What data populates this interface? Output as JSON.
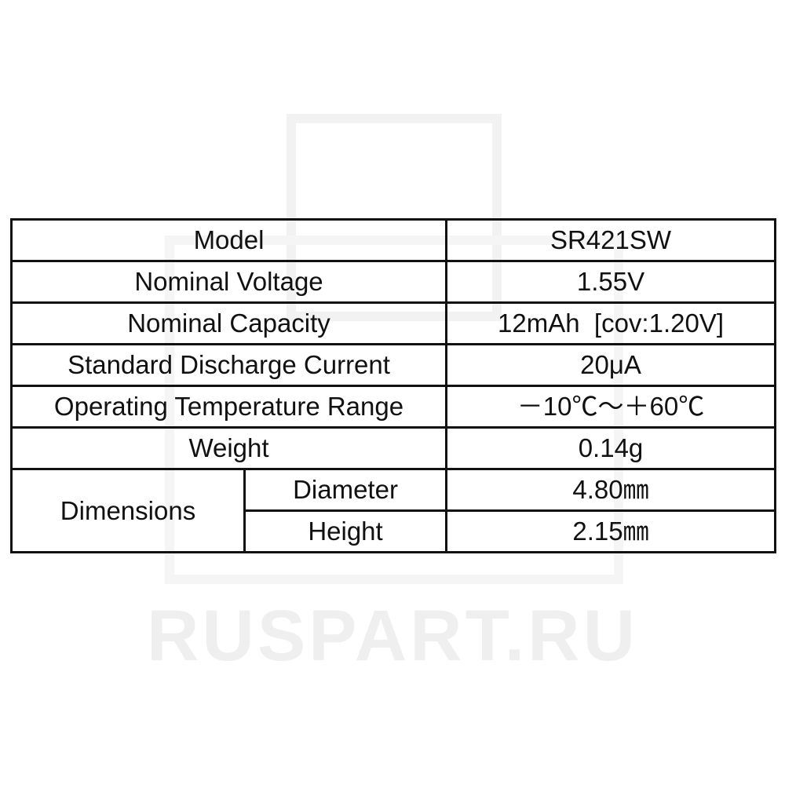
{
  "watermark": "RUSPART.RU",
  "rows": [
    {
      "label": "Model",
      "value": "SR421SW"
    },
    {
      "label": "Nominal Voltage",
      "value": "1.55V"
    },
    {
      "label": "Nominal Capacity",
      "value": "12mAh  [cov:1.20V]"
    },
    {
      "label": "Standard Discharge Current",
      "value": "20μA"
    },
    {
      "label": "Operating Temperature Range",
      "value": "－10℃～＋60℃"
    },
    {
      "label": "Weight",
      "value": "0.14g"
    }
  ],
  "dimensions": {
    "label": "Dimensions",
    "diameter": {
      "label": "Diameter",
      "value": "4.80㎜"
    },
    "height": {
      "label": "Height",
      "value": "2.15㎜"
    }
  }
}
